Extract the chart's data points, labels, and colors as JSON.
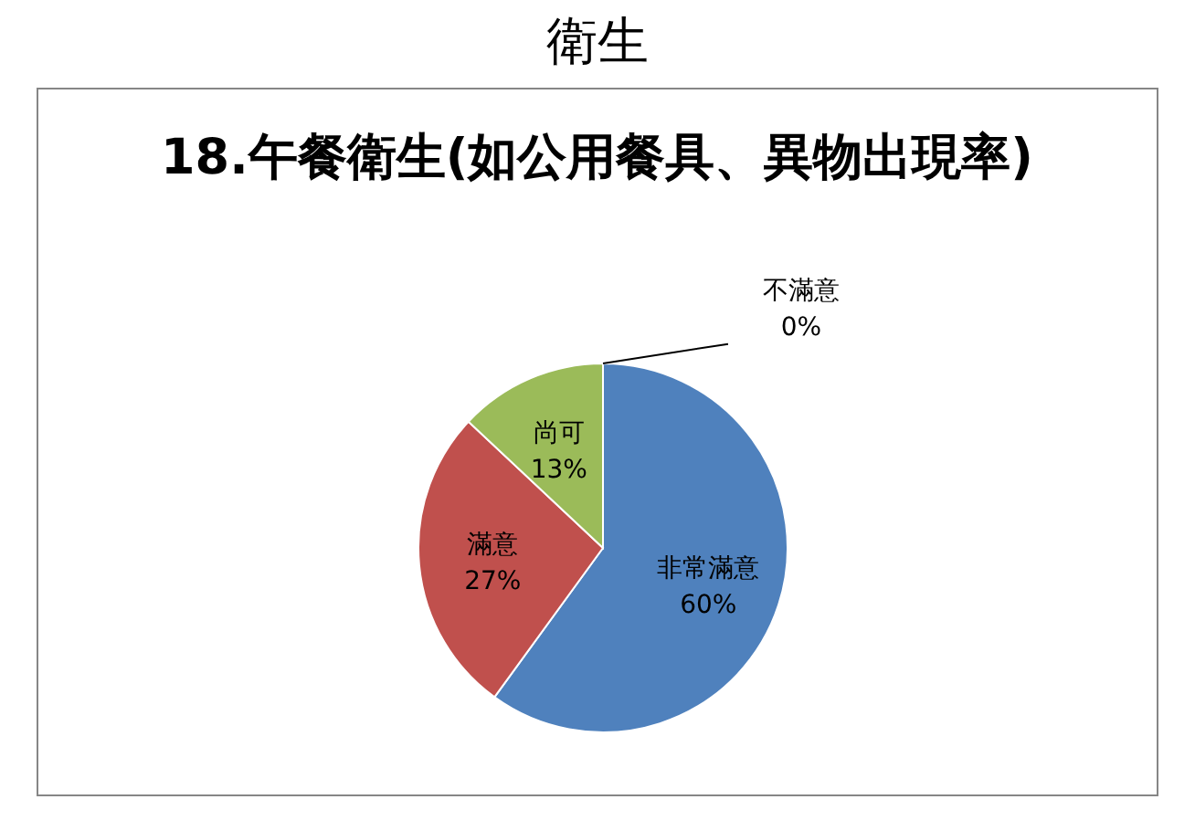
{
  "chart_data": {
    "type": "pie",
    "title": "衛生",
    "subtitle": "18.午餐衛生(如公用餐具、異物出現率)",
    "categories": [
      "非常滿意",
      "滿意",
      "尚可",
      "不滿意"
    ],
    "values": [
      60,
      27,
      13,
      0
    ],
    "colors": [
      "#4f81bd",
      "#c0504d",
      "#9bbb59",
      "#8064a2"
    ],
    "value_labels": [
      "60%",
      "27%",
      "13%",
      "0%"
    ]
  }
}
